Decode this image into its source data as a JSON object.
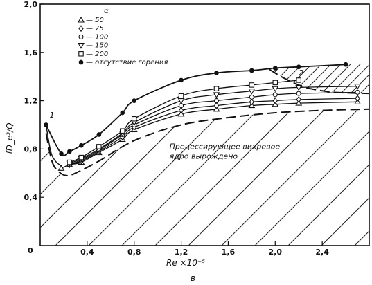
{
  "chart_data": {
    "type": "line",
    "xlabel": "Re ×10⁻⁵",
    "ylabel": "fD_e³/Q",
    "caption": "в",
    "xlim": [
      0,
      2.8
    ],
    "ylim": [
      0,
      2.0
    ],
    "x_ticks": [
      "0,4",
      "0,8",
      "1,2",
      "1,6",
      "2,0",
      "2,4"
    ],
    "y_ticks": [
      "0,4",
      "0,8",
      "1,2",
      "1,6",
      "2,0"
    ],
    "origin_label": "0",
    "legend_title": "α",
    "series": [
      {
        "name": "— 50",
        "marker": "triangle-up",
        "x": [
          0.18,
          0.25,
          0.35,
          0.5,
          0.7,
          0.8,
          1.2,
          1.5,
          1.8,
          2.0,
          2.2,
          2.7
        ],
        "y": [
          0.64,
          0.67,
          0.69,
          0.77,
          0.88,
          0.96,
          1.09,
          1.13,
          1.16,
          1.17,
          1.18,
          1.19
        ]
      },
      {
        "name": "— 75",
        "marker": "diamond",
        "x": [
          0.25,
          0.35,
          0.5,
          0.7,
          0.8,
          1.2,
          1.5,
          1.8,
          2.0,
          2.2,
          2.7
        ],
        "y": [
          0.67,
          0.7,
          0.78,
          0.9,
          0.98,
          1.12,
          1.16,
          1.19,
          1.2,
          1.21,
          1.22
        ]
      },
      {
        "name": "— 100",
        "marker": "circle",
        "x": [
          0.25,
          0.35,
          0.5,
          0.7,
          0.8,
          1.2,
          1.5,
          1.8,
          2.0,
          2.2,
          2.7
        ],
        "y": [
          0.67,
          0.71,
          0.79,
          0.92,
          1.0,
          1.16,
          1.2,
          1.23,
          1.25,
          1.26,
          1.27
        ]
      },
      {
        "name": "— 150",
        "marker": "triangle-down",
        "x": [
          0.25,
          0.35,
          0.5,
          0.7,
          0.8,
          1.2,
          1.5,
          1.8,
          2.0,
          2.2,
          2.7
        ],
        "y": [
          0.68,
          0.72,
          0.8,
          0.93,
          1.02,
          1.2,
          1.25,
          1.28,
          1.3,
          1.31,
          1.32
        ]
      },
      {
        "name": "— 200",
        "marker": "square",
        "x": [
          0.25,
          0.35,
          0.5,
          0.7,
          0.8,
          1.2,
          1.5,
          1.8,
          2.0,
          2.2
        ],
        "y": [
          0.69,
          0.73,
          0.82,
          0.95,
          1.05,
          1.24,
          1.3,
          1.33,
          1.35,
          1.37
        ]
      },
      {
        "name": "— отсутствие горения",
        "marker": "filled-circle",
        "x": [
          0.05,
          0.18,
          0.25,
          0.35,
          0.5,
          0.7,
          0.8,
          1.2,
          1.5,
          1.8,
          2.0,
          2.2,
          2.6
        ],
        "y": [
          1.0,
          0.76,
          0.78,
          0.83,
          0.92,
          1.1,
          1.2,
          1.37,
          1.43,
          1.45,
          1.47,
          1.48,
          1.5
        ]
      }
    ],
    "boundary_lower": {
      "x": [
        0.05,
        0.1,
        0.15,
        0.22,
        0.3,
        0.5,
        0.8,
        1.2,
        1.6,
        2.0,
        2.4,
        2.8
      ],
      "y": [
        0.93,
        0.7,
        0.62,
        0.58,
        0.6,
        0.7,
        0.87,
        1.0,
        1.06,
        1.1,
        1.12,
        1.13
      ]
    },
    "boundary_upper": {
      "x": [
        1.95,
        2.05,
        2.2,
        2.3,
        2.5,
        2.8
      ],
      "y": [
        1.46,
        1.4,
        1.33,
        1.3,
        1.27,
        1.26
      ]
    },
    "curve1_left": {
      "x": [
        0.05,
        0.09,
        0.13,
        0.18
      ],
      "y": [
        1.0,
        0.78,
        0.7,
        0.66
      ]
    },
    "annotations": [
      {
        "text": "1",
        "x": 0.08,
        "y": 1.06
      },
      {
        "text": "2",
        "x": 2.2,
        "y": 1.41
      },
      {
        "text": "Прецессирующее вихревое",
        "x": 1.1,
        "y": 0.8
      },
      {
        "text": "ядро вырождено",
        "x": 1.1,
        "y": 0.72
      }
    ]
  },
  "labels": {
    "xlabel": "Re ×10⁻⁵",
    "ylabel": "fD_e³/Q",
    "caption": "в",
    "origin": "0",
    "legend_title": "α"
  }
}
